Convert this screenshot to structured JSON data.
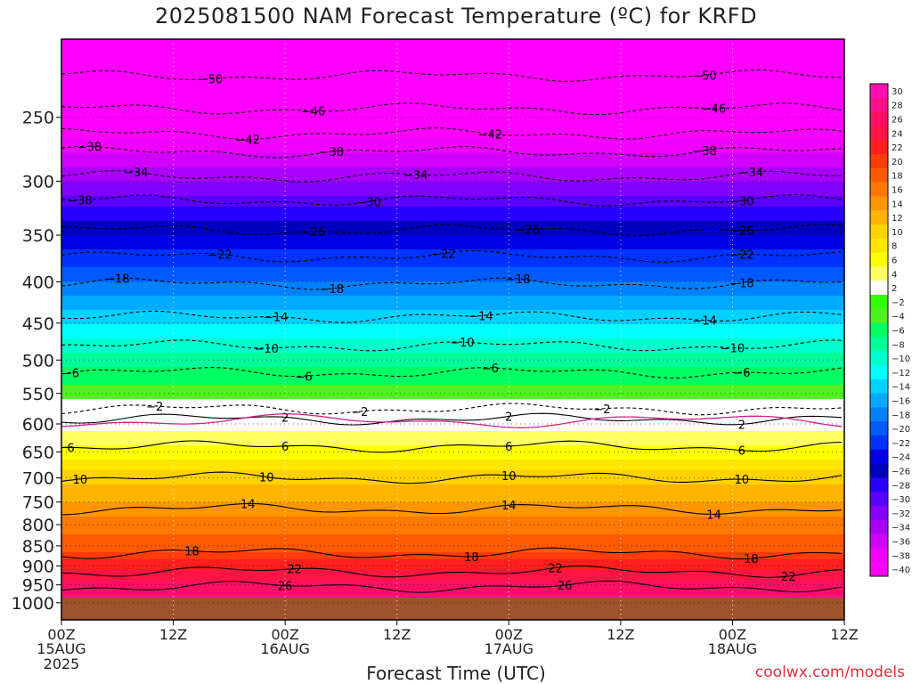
{
  "title": "2025081500 NAM Forecast Temperature (ºC) for KRFD",
  "xlabel": "Forecast Time (UTC)",
  "credit": "coolwx.com/models",
  "chart_data": {
    "type": "heatmap",
    "title": "2025081500 NAM Forecast Temperature (ºC) for KRFD",
    "xlabel": "Forecast Time (UTC)",
    "ylabel": "",
    "x_range_hours": [
      0,
      84
    ],
    "x_ticks": [
      {
        "h": 0,
        "label": "00Z",
        "sub": "15AUG",
        "sub2": "2025"
      },
      {
        "h": 12,
        "label": "12Z",
        "sub": "",
        "sub2": ""
      },
      {
        "h": 24,
        "label": "00Z",
        "sub": "16AUG",
        "sub2": ""
      },
      {
        "h": 36,
        "label": "12Z",
        "sub": "",
        "sub2": ""
      },
      {
        "h": 48,
        "label": "00Z",
        "sub": "17AUG",
        "sub2": ""
      },
      {
        "h": 60,
        "label": "12Z",
        "sub": "",
        "sub2": ""
      },
      {
        "h": 72,
        "label": "00Z",
        "sub": "18AUG",
        "sub2": ""
      },
      {
        "h": 84,
        "label": "12Z",
        "sub": "",
        "sub2": ""
      }
    ],
    "y_axis": "pressure (log scale, reversed)",
    "y_range_hpa": [
      1050,
      200
    ],
    "y_ticks": [
      250,
      300,
      350,
      400,
      450,
      500,
      550,
      600,
      650,
      700,
      750,
      800,
      850,
      900,
      950,
      1000
    ],
    "surface_pressure_hpa": 985,
    "surface_color": "#a0522d",
    "grid": "dotted",
    "colorbar": {
      "placement": "right",
      "levels": [
        "30",
        "28",
        "26",
        "24",
        "22",
        "20",
        "18",
        "16",
        "14",
        "12",
        "10",
        "8",
        "6",
        "4",
        "2",
        "−2",
        "−4",
        "−6",
        "−8",
        "−10",
        "−12",
        "−14",
        "−16",
        "−18",
        "−20",
        "−22",
        "−24",
        "−26",
        "−28",
        "−30",
        "−32",
        "−34",
        "−36",
        "−38",
        "−40"
      ],
      "colors": [
        "#ff0fb4",
        "#ff0f8c",
        "#ff0f64",
        "#ff1446",
        "#ff1e1e",
        "#ff3c0a",
        "#ff5a00",
        "#ff7800",
        "#ff9600",
        "#ffb400",
        "#ffd200",
        "#ffe600",
        "#ffff00",
        "#ffff64",
        "#ffffff",
        "#32ff00",
        "#50f020",
        "#00ff64",
        "#00ff9b",
        "#00ffcd",
        "#00ffff",
        "#00d2ff",
        "#00aaff",
        "#0082ff",
        "#005aff",
        "#0032ff",
        "#0000e6",
        "#0000be",
        "#2800ff",
        "#5a00ff",
        "#8200ff",
        "#aa00ff",
        "#d200ff",
        "#f000ff",
        "#ff00ff"
      ]
    },
    "temperature_profile": [
      {
        "p": 1000,
        "t": 29
      },
      {
        "p": 950,
        "t": 27
      },
      {
        "p": 900,
        "t": 23
      },
      {
        "p": 850,
        "t": 19
      },
      {
        "p": 800,
        "t": 17
      },
      {
        "p": 750,
        "t": 14
      },
      {
        "p": 700,
        "t": 11
      },
      {
        "p": 650,
        "t": 7
      },
      {
        "p": 600,
        "t": 3
      },
      {
        "p": 550,
        "t": -3
      },
      {
        "p": 500,
        "t": -7
      },
      {
        "p": 450,
        "t": -12
      },
      {
        "p": 400,
        "t": -18
      },
      {
        "p": 350,
        "t": -24
      },
      {
        "p": 300,
        "t": -32
      },
      {
        "p": 250,
        "t": -41
      },
      {
        "p": 200,
        "t": -52
      }
    ],
    "contours": [
      {
        "value": 26,
        "label": "26",
        "label_h": [
          24,
          54
        ],
        "p": 955
      },
      {
        "value": 22,
        "label": "22",
        "label_h": [
          25,
          53,
          78
        ],
        "p": 915
      },
      {
        "value": 18,
        "label": "18",
        "label_h": [
          14,
          44,
          74
        ],
        "p": 868
      },
      {
        "value": 14,
        "label": "14",
        "label_h": [
          20,
          48,
          70
        ],
        "p": 765
      },
      {
        "value": 10,
        "label": "10",
        "label_h": [
          2,
          22,
          48,
          73
        ],
        "p": 700
      },
      {
        "value": 6,
        "label": "6",
        "label_h": [
          1,
          24,
          48,
          73
        ],
        "p": 640
      },
      {
        "value": 2,
        "label": "2",
        "label_h": [
          24,
          48,
          73
        ],
        "p": 592
      },
      {
        "value": -2,
        "label": "−2",
        "label_h": [
          10,
          32,
          58
        ],
        "p": 575
      },
      {
        "value": -6,
        "label": "−6",
        "label_h": [
          1,
          26,
          46,
          73
        ],
        "p": 518
      },
      {
        "value": -10,
        "label": "−10",
        "label_h": [
          22,
          43,
          72
        ],
        "p": 480
      },
      {
        "value": -14,
        "label": "−14",
        "label_h": [
          23,
          45,
          69
        ],
        "p": 442
      },
      {
        "value": -18,
        "label": "−18",
        "label_h": [
          6,
          29,
          49,
          73
        ],
        "p": 402
      },
      {
        "value": -22,
        "label": "−22",
        "label_h": [
          17,
          41,
          73
        ],
        "p": 372
      },
      {
        "value": -26,
        "label": "−26",
        "label_h": [
          27,
          50,
          73
        ],
        "p": 345
      },
      {
        "value": -30,
        "label": "−30",
        "label_h": [
          2,
          33,
          73
        ],
        "p": 317
      },
      {
        "value": -34,
        "label": "−34",
        "label_h": [
          8,
          38,
          74
        ],
        "p": 296
      },
      {
        "value": -38,
        "label": "−38",
        "label_h": [
          3,
          29,
          69
        ],
        "p": 276
      },
      {
        "value": -42,
        "label": "−42",
        "label_h": [
          20,
          46
        ],
        "p": 262
      },
      {
        "value": -46,
        "label": "−46",
        "label_h": [
          27,
          70
        ],
        "p": 244
      },
      {
        "value": -50,
        "label": "−50",
        "label_h": [
          16,
          69
        ],
        "p": 222
      }
    ]
  }
}
